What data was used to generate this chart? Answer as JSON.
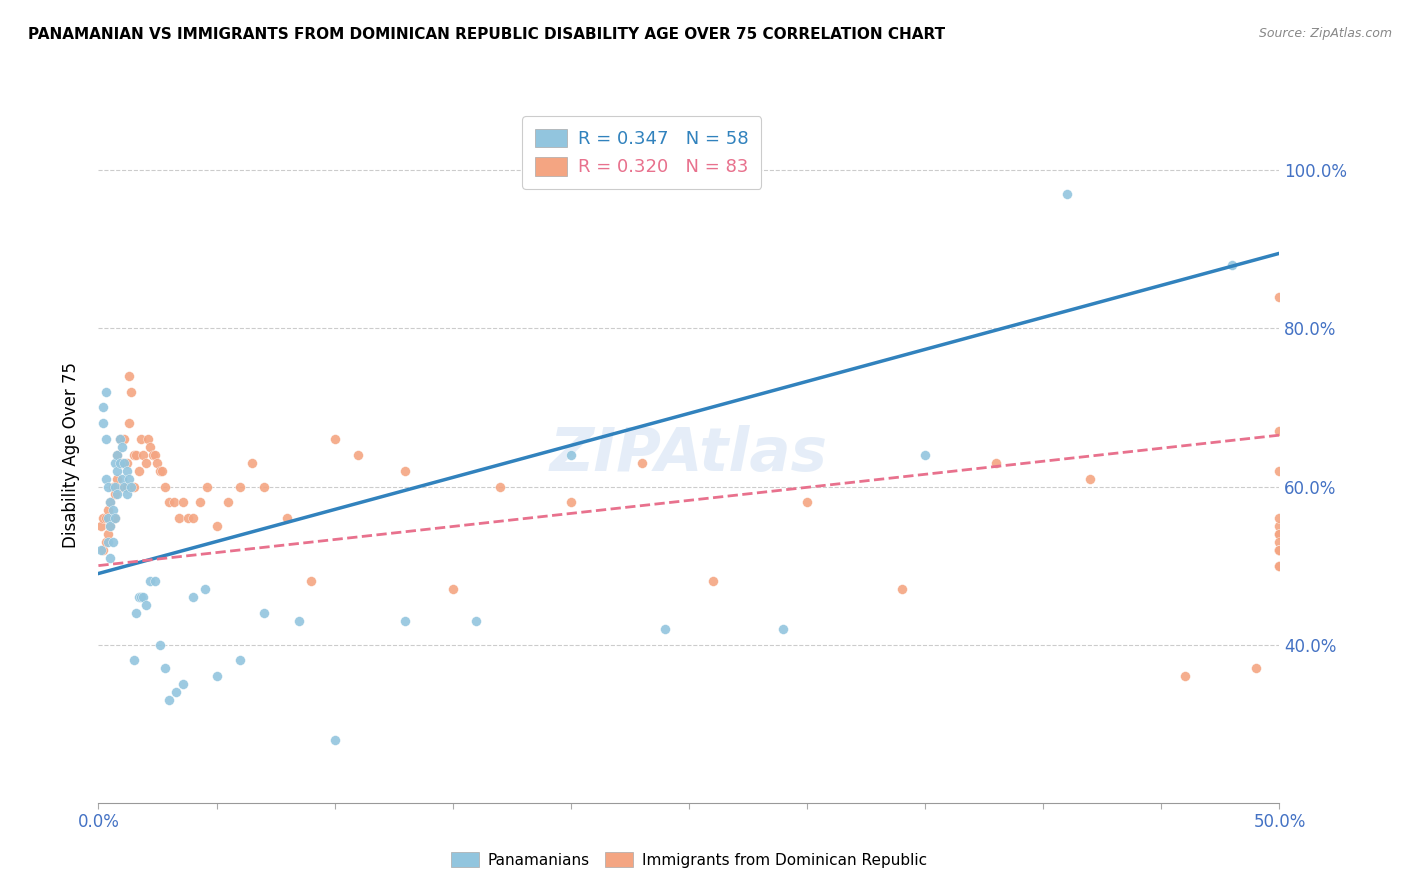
{
  "title": "PANAMANIAN VS IMMIGRANTS FROM DOMINICAN REPUBLIC DISABILITY AGE OVER 75 CORRELATION CHART",
  "source": "Source: ZipAtlas.com",
  "ylabel": "Disability Age Over 75",
  "legend_labels": [
    "Panamanians",
    "Immigrants from Dominican Republic"
  ],
  "blue_color": "#92c5de",
  "pink_color": "#f4a582",
  "blue_line_color": "#3182bd",
  "pink_line_color": "#e8718d",
  "xlim": [
    0.0,
    0.5
  ],
  "ylim": [
    0.2,
    1.08
  ],
  "blue_line_x0": 0.0,
  "blue_line_y0": 0.49,
  "blue_line_x1": 0.5,
  "blue_line_y1": 0.895,
  "pink_line_x0": 0.0,
  "pink_line_y0": 0.5,
  "pink_line_x1": 0.5,
  "pink_line_y1": 0.665,
  "yticks": [
    0.4,
    0.6,
    0.8,
    1.0
  ],
  "blue_scatter_x": [
    0.001,
    0.002,
    0.002,
    0.003,
    0.003,
    0.003,
    0.004,
    0.004,
    0.004,
    0.005,
    0.005,
    0.005,
    0.006,
    0.006,
    0.007,
    0.007,
    0.007,
    0.008,
    0.008,
    0.008,
    0.009,
    0.009,
    0.01,
    0.01,
    0.011,
    0.011,
    0.012,
    0.012,
    0.013,
    0.014,
    0.015,
    0.016,
    0.017,
    0.018,
    0.019,
    0.02,
    0.022,
    0.024,
    0.026,
    0.028,
    0.03,
    0.033,
    0.036,
    0.04,
    0.045,
    0.05,
    0.06,
    0.07,
    0.085,
    0.1,
    0.13,
    0.16,
    0.2,
    0.24,
    0.29,
    0.35,
    0.41,
    0.48
  ],
  "blue_scatter_y": [
    0.52,
    0.7,
    0.68,
    0.72,
    0.66,
    0.61,
    0.6,
    0.56,
    0.53,
    0.58,
    0.55,
    0.51,
    0.57,
    0.53,
    0.63,
    0.6,
    0.56,
    0.64,
    0.62,
    0.59,
    0.66,
    0.63,
    0.65,
    0.61,
    0.63,
    0.6,
    0.62,
    0.59,
    0.61,
    0.6,
    0.38,
    0.44,
    0.46,
    0.46,
    0.46,
    0.45,
    0.48,
    0.48,
    0.4,
    0.37,
    0.33,
    0.34,
    0.35,
    0.46,
    0.47,
    0.36,
    0.38,
    0.44,
    0.43,
    0.28,
    0.43,
    0.43,
    0.64,
    0.42,
    0.42,
    0.64,
    0.97,
    0.88
  ],
  "pink_scatter_x": [
    0.001,
    0.002,
    0.002,
    0.003,
    0.003,
    0.004,
    0.004,
    0.005,
    0.005,
    0.006,
    0.006,
    0.007,
    0.007,
    0.008,
    0.008,
    0.009,
    0.01,
    0.01,
    0.011,
    0.012,
    0.012,
    0.013,
    0.013,
    0.014,
    0.015,
    0.015,
    0.016,
    0.017,
    0.018,
    0.019,
    0.02,
    0.021,
    0.022,
    0.023,
    0.024,
    0.025,
    0.026,
    0.027,
    0.028,
    0.03,
    0.032,
    0.034,
    0.036,
    0.038,
    0.04,
    0.043,
    0.046,
    0.05,
    0.055,
    0.06,
    0.065,
    0.07,
    0.08,
    0.09,
    0.1,
    0.11,
    0.13,
    0.15,
    0.17,
    0.2,
    0.23,
    0.26,
    0.3,
    0.34,
    0.38,
    0.42,
    0.46,
    0.49,
    0.5,
    0.5,
    0.5,
    0.5,
    0.5,
    0.5,
    0.5,
    0.5,
    0.5,
    0.5,
    0.5,
    0.5,
    0.5,
    0.5,
    0.5
  ],
  "pink_scatter_y": [
    0.55,
    0.56,
    0.52,
    0.56,
    0.53,
    0.57,
    0.54,
    0.58,
    0.55,
    0.6,
    0.56,
    0.59,
    0.56,
    0.64,
    0.61,
    0.66,
    0.63,
    0.6,
    0.66,
    0.63,
    0.6,
    0.74,
    0.68,
    0.72,
    0.64,
    0.6,
    0.64,
    0.62,
    0.66,
    0.64,
    0.63,
    0.66,
    0.65,
    0.64,
    0.64,
    0.63,
    0.62,
    0.62,
    0.6,
    0.58,
    0.58,
    0.56,
    0.58,
    0.56,
    0.56,
    0.58,
    0.6,
    0.55,
    0.58,
    0.6,
    0.63,
    0.6,
    0.56,
    0.48,
    0.66,
    0.64,
    0.62,
    0.47,
    0.6,
    0.58,
    0.63,
    0.48,
    0.58,
    0.47,
    0.63,
    0.61,
    0.36,
    0.37,
    0.84,
    0.62,
    0.67,
    0.55,
    0.54,
    0.54,
    0.56,
    0.52,
    0.53,
    0.52,
    0.52,
    0.5,
    0.52,
    0.5,
    0.52
  ]
}
